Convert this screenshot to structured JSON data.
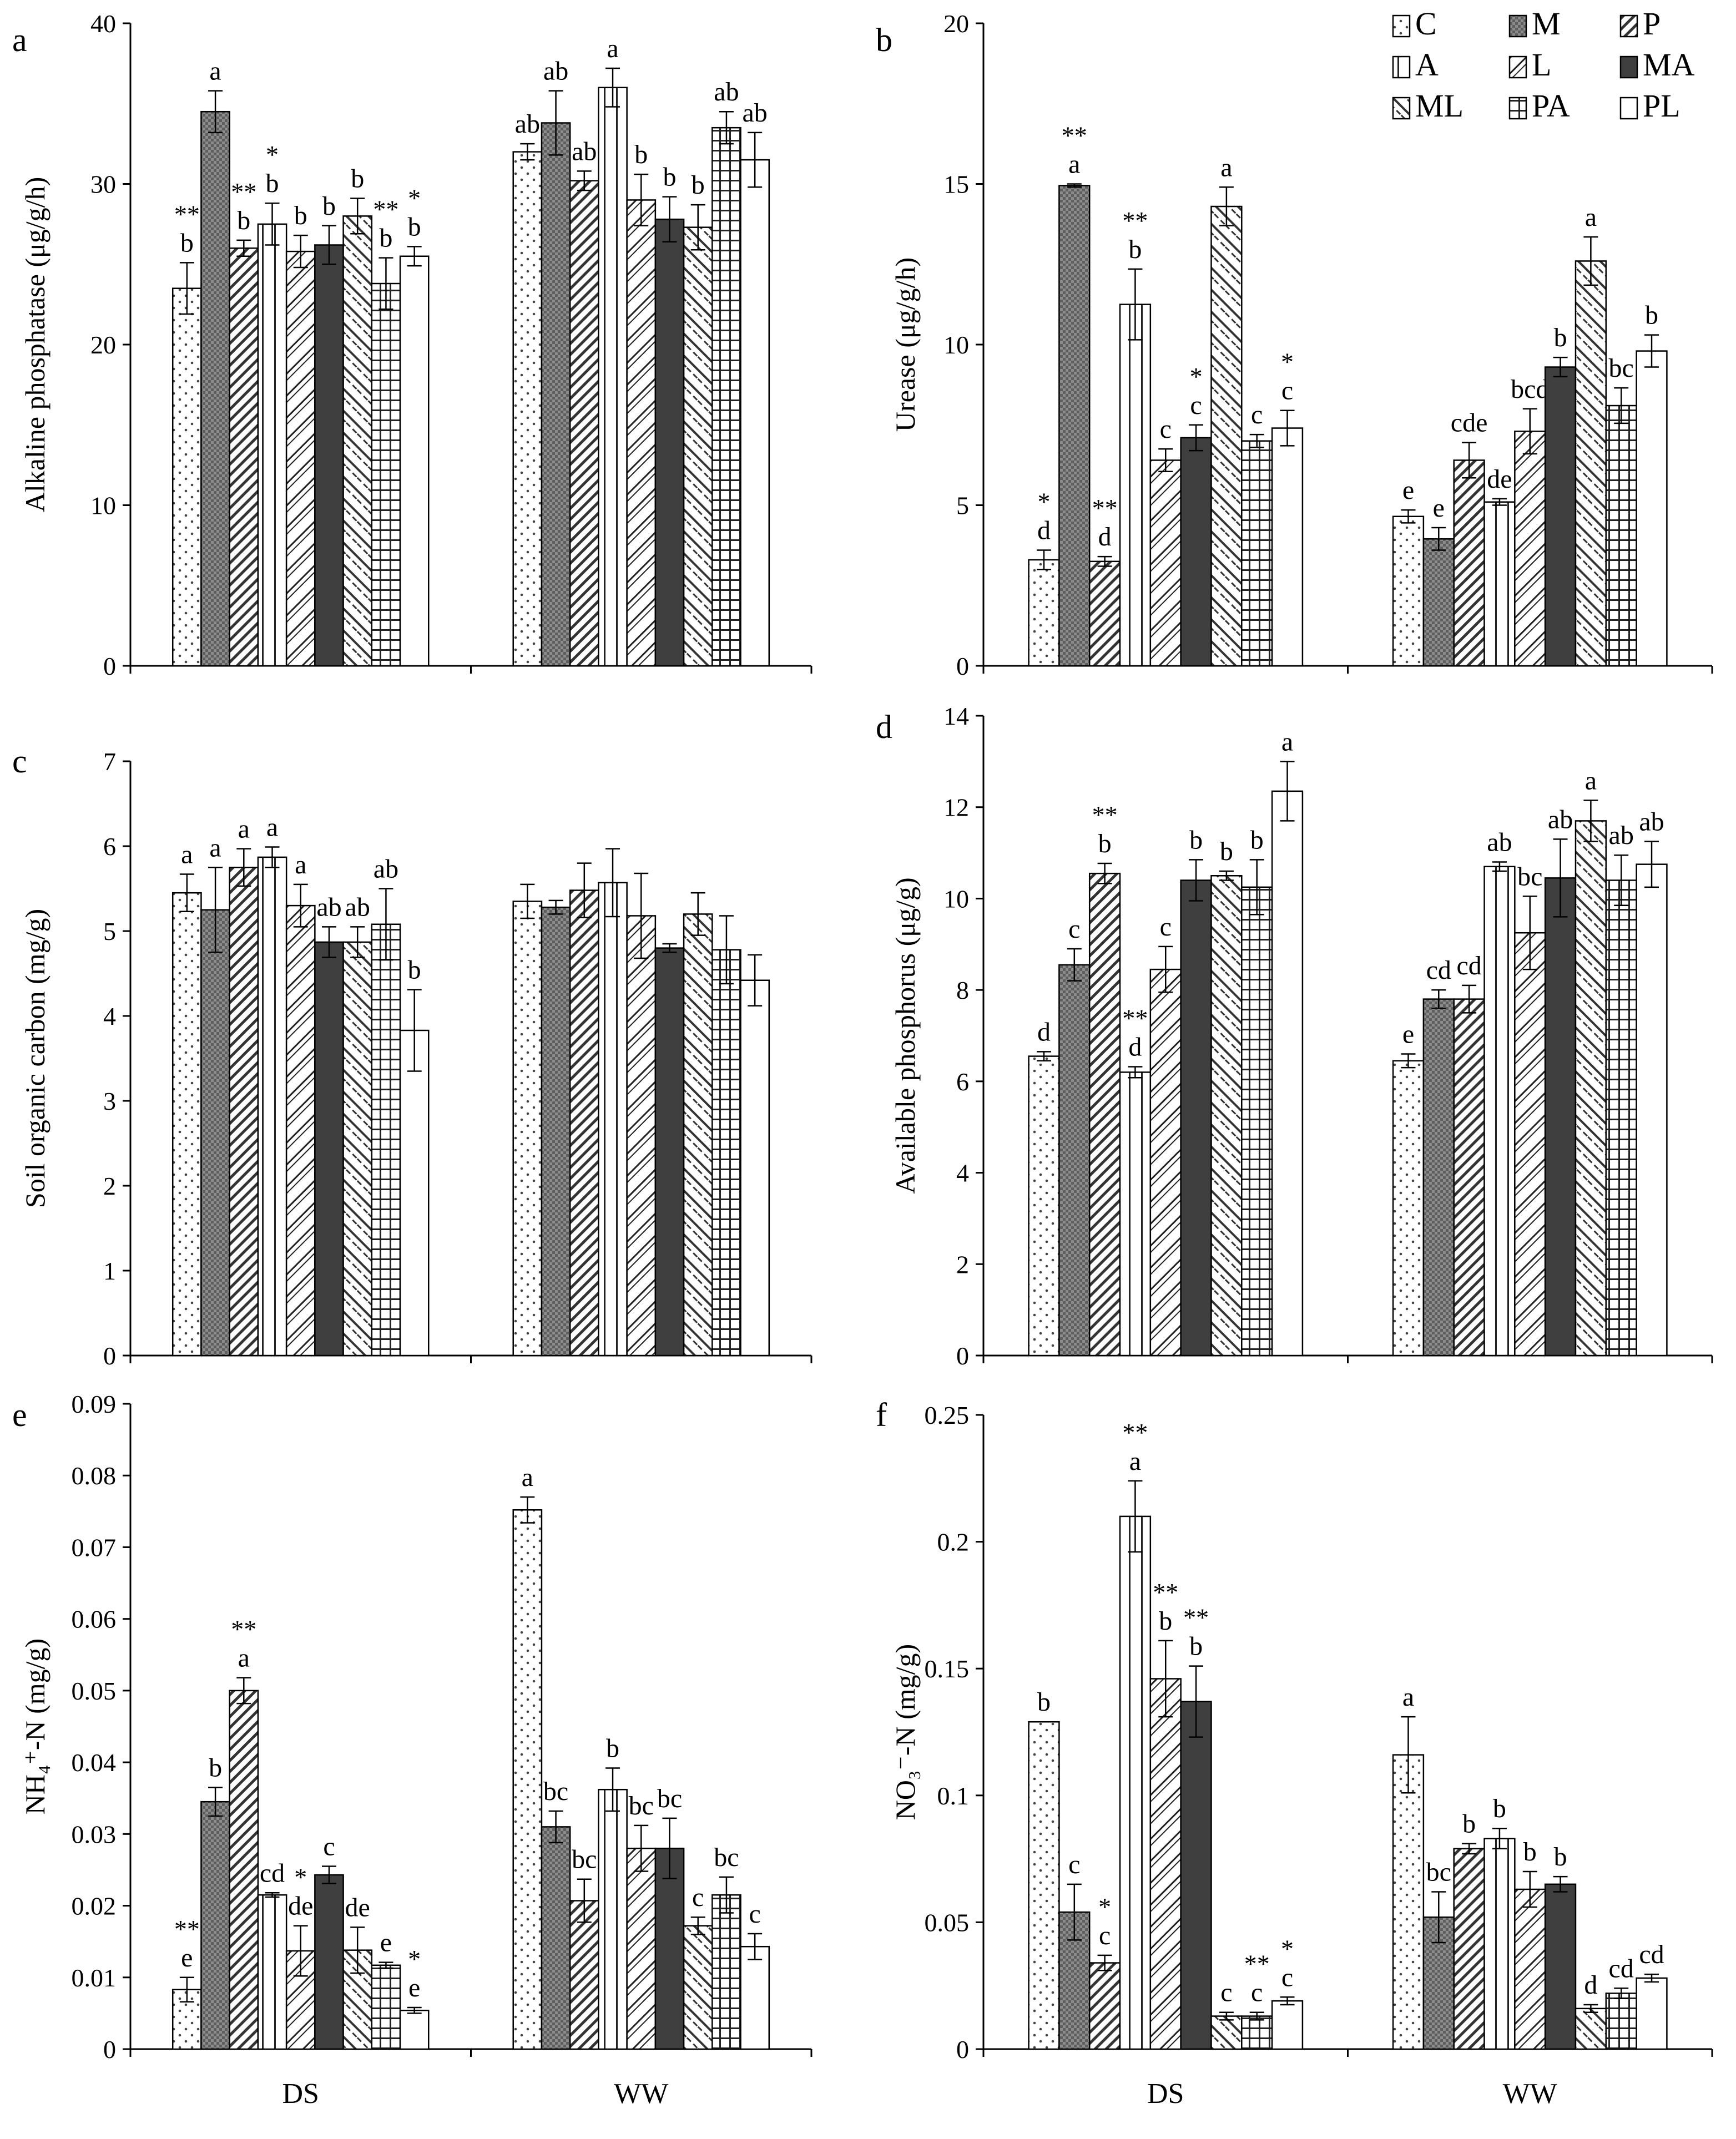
{
  "treatments": [
    "C",
    "M",
    "P",
    "A",
    "L",
    "MA",
    "ML",
    "PA",
    "PL"
  ],
  "legend": [
    {
      "key": "C",
      "label": "C"
    },
    {
      "key": "M",
      "label": "M"
    },
    {
      "key": "P",
      "label": "P"
    },
    {
      "key": "A",
      "label": "A"
    },
    {
      "key": "L",
      "label": "L"
    },
    {
      "key": "MA",
      "label": "MA"
    },
    {
      "key": "ML",
      "label": "ML"
    },
    {
      "key": "PA",
      "label": "PA"
    },
    {
      "key": "PL",
      "label": "PL"
    }
  ],
  "x_categories": [
    "DS",
    "WW"
  ],
  "chart_data": [
    {
      "panel": "a",
      "type": "bar",
      "ylabel": "Alkaline phosphatase (μg/g/h)",
      "ylim": [
        0,
        40
      ],
      "ticks": [
        "0",
        "10",
        "20",
        "30",
        "40"
      ],
      "categories": [
        "DS",
        "WW"
      ],
      "groups": [
        {
          "values": [
            23.5,
            34.5,
            26.0,
            27.5,
            25.8,
            26.2,
            28.0,
            23.8,
            25.5
          ],
          "errors": [
            1.6,
            1.3,
            0.5,
            1.3,
            1.0,
            1.2,
            1.1,
            1.6,
            0.6
          ],
          "letters": [
            "b",
            "a",
            "b",
            "b",
            "b",
            "b",
            "b",
            "b",
            "b"
          ],
          "stars": [
            "**",
            "",
            "**",
            "*",
            "",
            "",
            "",
            "**",
            "*"
          ]
        },
        {
          "values": [
            32.0,
            33.8,
            30.2,
            36.0,
            29.0,
            27.8,
            27.3,
            33.5,
            31.5
          ],
          "errors": [
            0.5,
            2.0,
            0.6,
            1.2,
            1.6,
            1.4,
            1.4,
            1.0,
            1.7
          ],
          "letters": [
            "ab",
            "ab",
            "ab",
            "a",
            "b",
            "b",
            "b",
            "ab",
            "ab"
          ],
          "stars": [
            "",
            "",
            "",
            "",
            "",
            "",
            "",
            "",
            ""
          ]
        }
      ]
    },
    {
      "panel": "b",
      "type": "bar",
      "ylabel": "Urease (μg/g/h)",
      "ylim": [
        0,
        20
      ],
      "ticks": [
        "0",
        "5",
        "10",
        "15",
        "20"
      ],
      "categories": [
        "DS",
        "WW"
      ],
      "groups": [
        {
          "values": [
            3.3,
            14.95,
            3.25,
            11.25,
            6.4,
            7.1,
            14.3,
            7.0,
            7.4
          ],
          "errors": [
            0.3,
            0.05,
            0.15,
            1.1,
            0.35,
            0.4,
            0.6,
            0.2,
            0.55
          ],
          "letters": [
            "d",
            "a",
            "d",
            "b",
            "c",
            "c",
            "a",
            "c",
            "c"
          ],
          "stars": [
            "*",
            "**",
            "**",
            "**",
            "",
            "*",
            "",
            "",
            "*"
          ]
        },
        {
          "values": [
            4.65,
            3.95,
            6.4,
            5.1,
            7.3,
            9.3,
            12.6,
            8.1,
            9.8
          ],
          "errors": [
            0.2,
            0.35,
            0.55,
            0.1,
            0.7,
            0.3,
            0.75,
            0.55,
            0.5
          ],
          "letters": [
            "e",
            "e",
            "cde",
            "de",
            "bcd",
            "b",
            "a",
            "bc",
            "b"
          ],
          "stars": [
            "",
            "",
            "",
            "",
            "",
            "",
            "",
            "",
            ""
          ]
        }
      ]
    },
    {
      "panel": "c",
      "type": "bar",
      "ylabel": "Soil organic carbon (mg/g)",
      "ylim": [
        0,
        7
      ],
      "ticks": [
        "0",
        "1",
        "2",
        "3",
        "4",
        "5",
        "6",
        "7"
      ],
      "categories": [
        "DS",
        "WW"
      ],
      "groups": [
        {
          "values": [
            5.45,
            5.25,
            5.75,
            5.87,
            5.3,
            4.87,
            4.87,
            5.08,
            3.83
          ],
          "errors": [
            0.22,
            0.5,
            0.22,
            0.12,
            0.25,
            0.18,
            0.18,
            0.42,
            0.48
          ],
          "letters": [
            "a",
            "a",
            "a",
            "a",
            "a",
            "ab",
            "ab",
            "ab",
            "b"
          ],
          "stars": [
            "",
            "",
            "",
            "",
            "",
            "",
            "",
            "",
            ""
          ]
        },
        {
          "values": [
            5.35,
            5.28,
            5.48,
            5.57,
            5.18,
            4.8,
            5.2,
            4.78,
            4.42
          ],
          "errors": [
            0.2,
            0.08,
            0.32,
            0.4,
            0.5,
            0.05,
            0.25,
            0.4,
            0.3
          ],
          "letters": [
            "",
            "",
            "",
            "",
            "",
            "",
            "",
            "",
            ""
          ],
          "stars": [
            "",
            "",
            "",
            "",
            "",
            "",
            "",
            "",
            ""
          ]
        }
      ]
    },
    {
      "panel": "d",
      "type": "bar",
      "ylabel": "Available phosphorus (μg/g)",
      "ylim": [
        0,
        14
      ],
      "ticks": [
        "0",
        "2",
        "4",
        "6",
        "8",
        "10",
        "12",
        "14"
      ],
      "categories": [
        "DS",
        "WW"
      ],
      "groups": [
        {
          "values": [
            6.55,
            8.55,
            10.55,
            6.2,
            8.45,
            10.4,
            10.5,
            10.25,
            12.35
          ],
          "errors": [
            0.1,
            0.35,
            0.22,
            0.12,
            0.5,
            0.45,
            0.1,
            0.6,
            0.65
          ],
          "letters": [
            "d",
            "c",
            "b",
            "d",
            "c",
            "b",
            "b",
            "b",
            "a"
          ],
          "stars": [
            "",
            "",
            "**",
            "**",
            "",
            "",
            "",
            "",
            ""
          ]
        },
        {
          "values": [
            6.45,
            7.8,
            7.8,
            10.7,
            9.25,
            10.45,
            11.7,
            10.4,
            10.75
          ],
          "errors": [
            0.15,
            0.2,
            0.3,
            0.1,
            0.8,
            0.85,
            0.45,
            0.55,
            0.5
          ],
          "letters": [
            "e",
            "cd",
            "cd",
            "ab",
            "bc",
            "ab",
            "a",
            "ab",
            "ab"
          ],
          "stars": [
            "",
            "",
            "",
            "",
            "",
            "",
            "",
            "",
            ""
          ]
        }
      ]
    },
    {
      "panel": "e",
      "type": "bar",
      "ylabel": "NH₄⁺-N (mg/g)",
      "ylim": [
        0,
        0.09
      ],
      "ticks": [
        "0",
        "0.01",
        "0.02",
        "0.03",
        "0.04",
        "0.05",
        "0.06",
        "0.07",
        "0.08",
        "0.09"
      ],
      "categories": [
        "DS",
        "WW"
      ],
      "groups": [
        {
          "values": [
            0.0083,
            0.0345,
            0.05,
            0.0215,
            0.0137,
            0.0243,
            0.0138,
            0.0117,
            0.0054
          ],
          "errors": [
            0.0017,
            0.002,
            0.0018,
            0.0003,
            0.0035,
            0.0012,
            0.0032,
            0.0004,
            0.0004
          ],
          "letters": [
            "e",
            "b",
            "a",
            "cd",
            "de",
            "c",
            "de",
            "e",
            "e"
          ],
          "stars": [
            "**",
            "",
            "**",
            "",
            "*",
            "",
            "",
            "",
            "*"
          ]
        },
        {
          "values": [
            0.0752,
            0.031,
            0.0207,
            0.0362,
            0.028,
            0.028,
            0.0172,
            0.0215,
            0.0143
          ],
          "errors": [
            0.0018,
            0.0022,
            0.003,
            0.003,
            0.0032,
            0.0042,
            0.0012,
            0.0025,
            0.0018
          ],
          "letters": [
            "a",
            "bc",
            "bc",
            "b",
            "bc",
            "bc",
            "c",
            "bc",
            "c"
          ],
          "stars": [
            "",
            "",
            "",
            "",
            "",
            "",
            "",
            "",
            ""
          ]
        }
      ]
    },
    {
      "panel": "f",
      "type": "bar",
      "ylabel": "NO₃⁻-N (mg/g)",
      "ylim": [
        0,
        0.25
      ],
      "ticks": [
        "0",
        "0.05",
        "0.1",
        "0.15",
        "0.2",
        "0.25"
      ],
      "categories": [
        "DS",
        "WW"
      ],
      "groups": [
        {
          "values": [
            0.129,
            0.054,
            0.034,
            0.21,
            0.146,
            0.137,
            0.013,
            0.013,
            0.019
          ],
          "errors": [
            0.0,
            0.011,
            0.003,
            0.014,
            0.015,
            0.014,
            0.0015,
            0.0015,
            0.0015
          ],
          "letters": [
            "b",
            "c",
            "c",
            "a",
            "b",
            "b",
            "c",
            "c",
            "c"
          ],
          "stars": [
            "",
            "",
            "*",
            "**",
            "**",
            "**",
            "",
            "**",
            "*"
          ]
        },
        {
          "values": [
            0.116,
            0.052,
            0.079,
            0.083,
            0.063,
            0.065,
            0.016,
            0.022,
            0.028
          ],
          "errors": [
            0.015,
            0.01,
            0.002,
            0.004,
            0.007,
            0.003,
            0.0015,
            0.002,
            0.0015
          ],
          "letters": [
            "a",
            "bc",
            "b",
            "b",
            "b",
            "b",
            "d",
            "cd",
            "cd"
          ],
          "stars": [
            "",
            "",
            "",
            "",
            "",
            "",
            "",
            "",
            ""
          ]
        }
      ]
    }
  ]
}
